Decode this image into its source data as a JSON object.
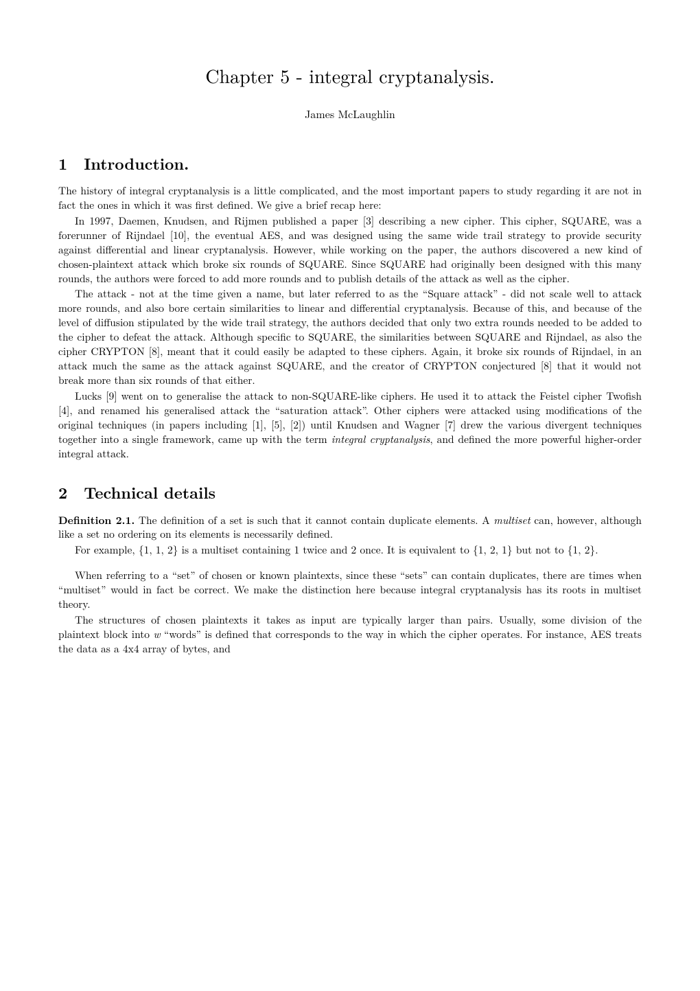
{
  "title": "Chapter 5 - integral cryptanalysis.",
  "author": "James McLaughlin",
  "section1": {
    "number": "1",
    "name": "Introduction.",
    "p1": "The history of integral cryptanalysis is a little complicated, and the most important papers to study regarding it are not in fact the ones in which it was first defined. We give a brief recap here:",
    "p2": "In 1997, Daemen, Knudsen, and Rijmen published a paper [3] describing a new cipher. This cipher, SQUARE, was a forerunner of Rijndael [10], the eventual AES, and was designed using the same wide trail strategy to provide security against differential and linear cryptanalysis. However, while working on the paper, the authors discovered a new kind of chosen-plaintext attack which broke six rounds of SQUARE. Since SQUARE had originally been designed with this many rounds, the authors were forced to add more rounds and to publish details of the attack as well as the cipher.",
    "p3": "The attack - not at the time given a name, but later referred to as the “Square attack” - did not scale well to attack more rounds, and also bore certain similarities to linear and differential cryptanalysis. Because of this, and because of the level of diffusion stipulated by the wide trail strategy, the authors decided that only two extra rounds needed to be added to the cipher to defeat the attack. Although specific to SQUARE, the similarities between SQUARE and Rijndael, as also the cipher CRYPTON [8], meant that it could easily be adapted to these ciphers. Again, it broke six rounds of Rijndael, in an attack much the same as the attack against SQUARE, and the creator of CRYPTON conjectured [8] that it would not break more than six rounds of that either.",
    "p4a": "Lucks [9] went on to generalise the attack to non-SQUARE-like ciphers. He used it to attack the Feistel cipher Twofish [4], and renamed his generalised attack the “saturation attack”. Other ciphers were attacked using modifications of the original techniques (in papers including [1], [5], [2]) until Knudsen and Wagner [7] drew the various divergent techniques together into a single framework, came up with the term ",
    "p4_italic": "integral cryptanalysis",
    "p4b": ", and defined the more powerful higher-order integral attack."
  },
  "section2": {
    "number": "2",
    "name": "Technical details",
    "def_label": "Definition 2.1.",
    "def_p1a": " The definition of a set is such that it cannot contain duplicate elements. A ",
    "def_p1_italic": "multiset",
    "def_p1b": " can, however, although like a set no ordering on its elements is necessarily defined.",
    "def_p2": "For example, {1, 1, 2} is a multiset containing 1 twice and 2 once. It is equivalent to {1, 2, 1} but not to {1, 2}.",
    "p3": "When referring to a “set” of chosen or known plaintexts, since these “sets” can contain duplicates, there are times when “multiset” would in fact be correct. We make the distinction here because integral cryptanalysis has its roots in multiset theory.",
    "p4a": "The structures of chosen plaintexts it takes as input are typically larger than pairs. Usually, some division of the plaintext block into ",
    "p4_italic": "w",
    "p4b": " “words” is defined that corresponds to the way in which the cipher operates. For instance, AES treats the data as a 4x4 array of bytes, and"
  }
}
